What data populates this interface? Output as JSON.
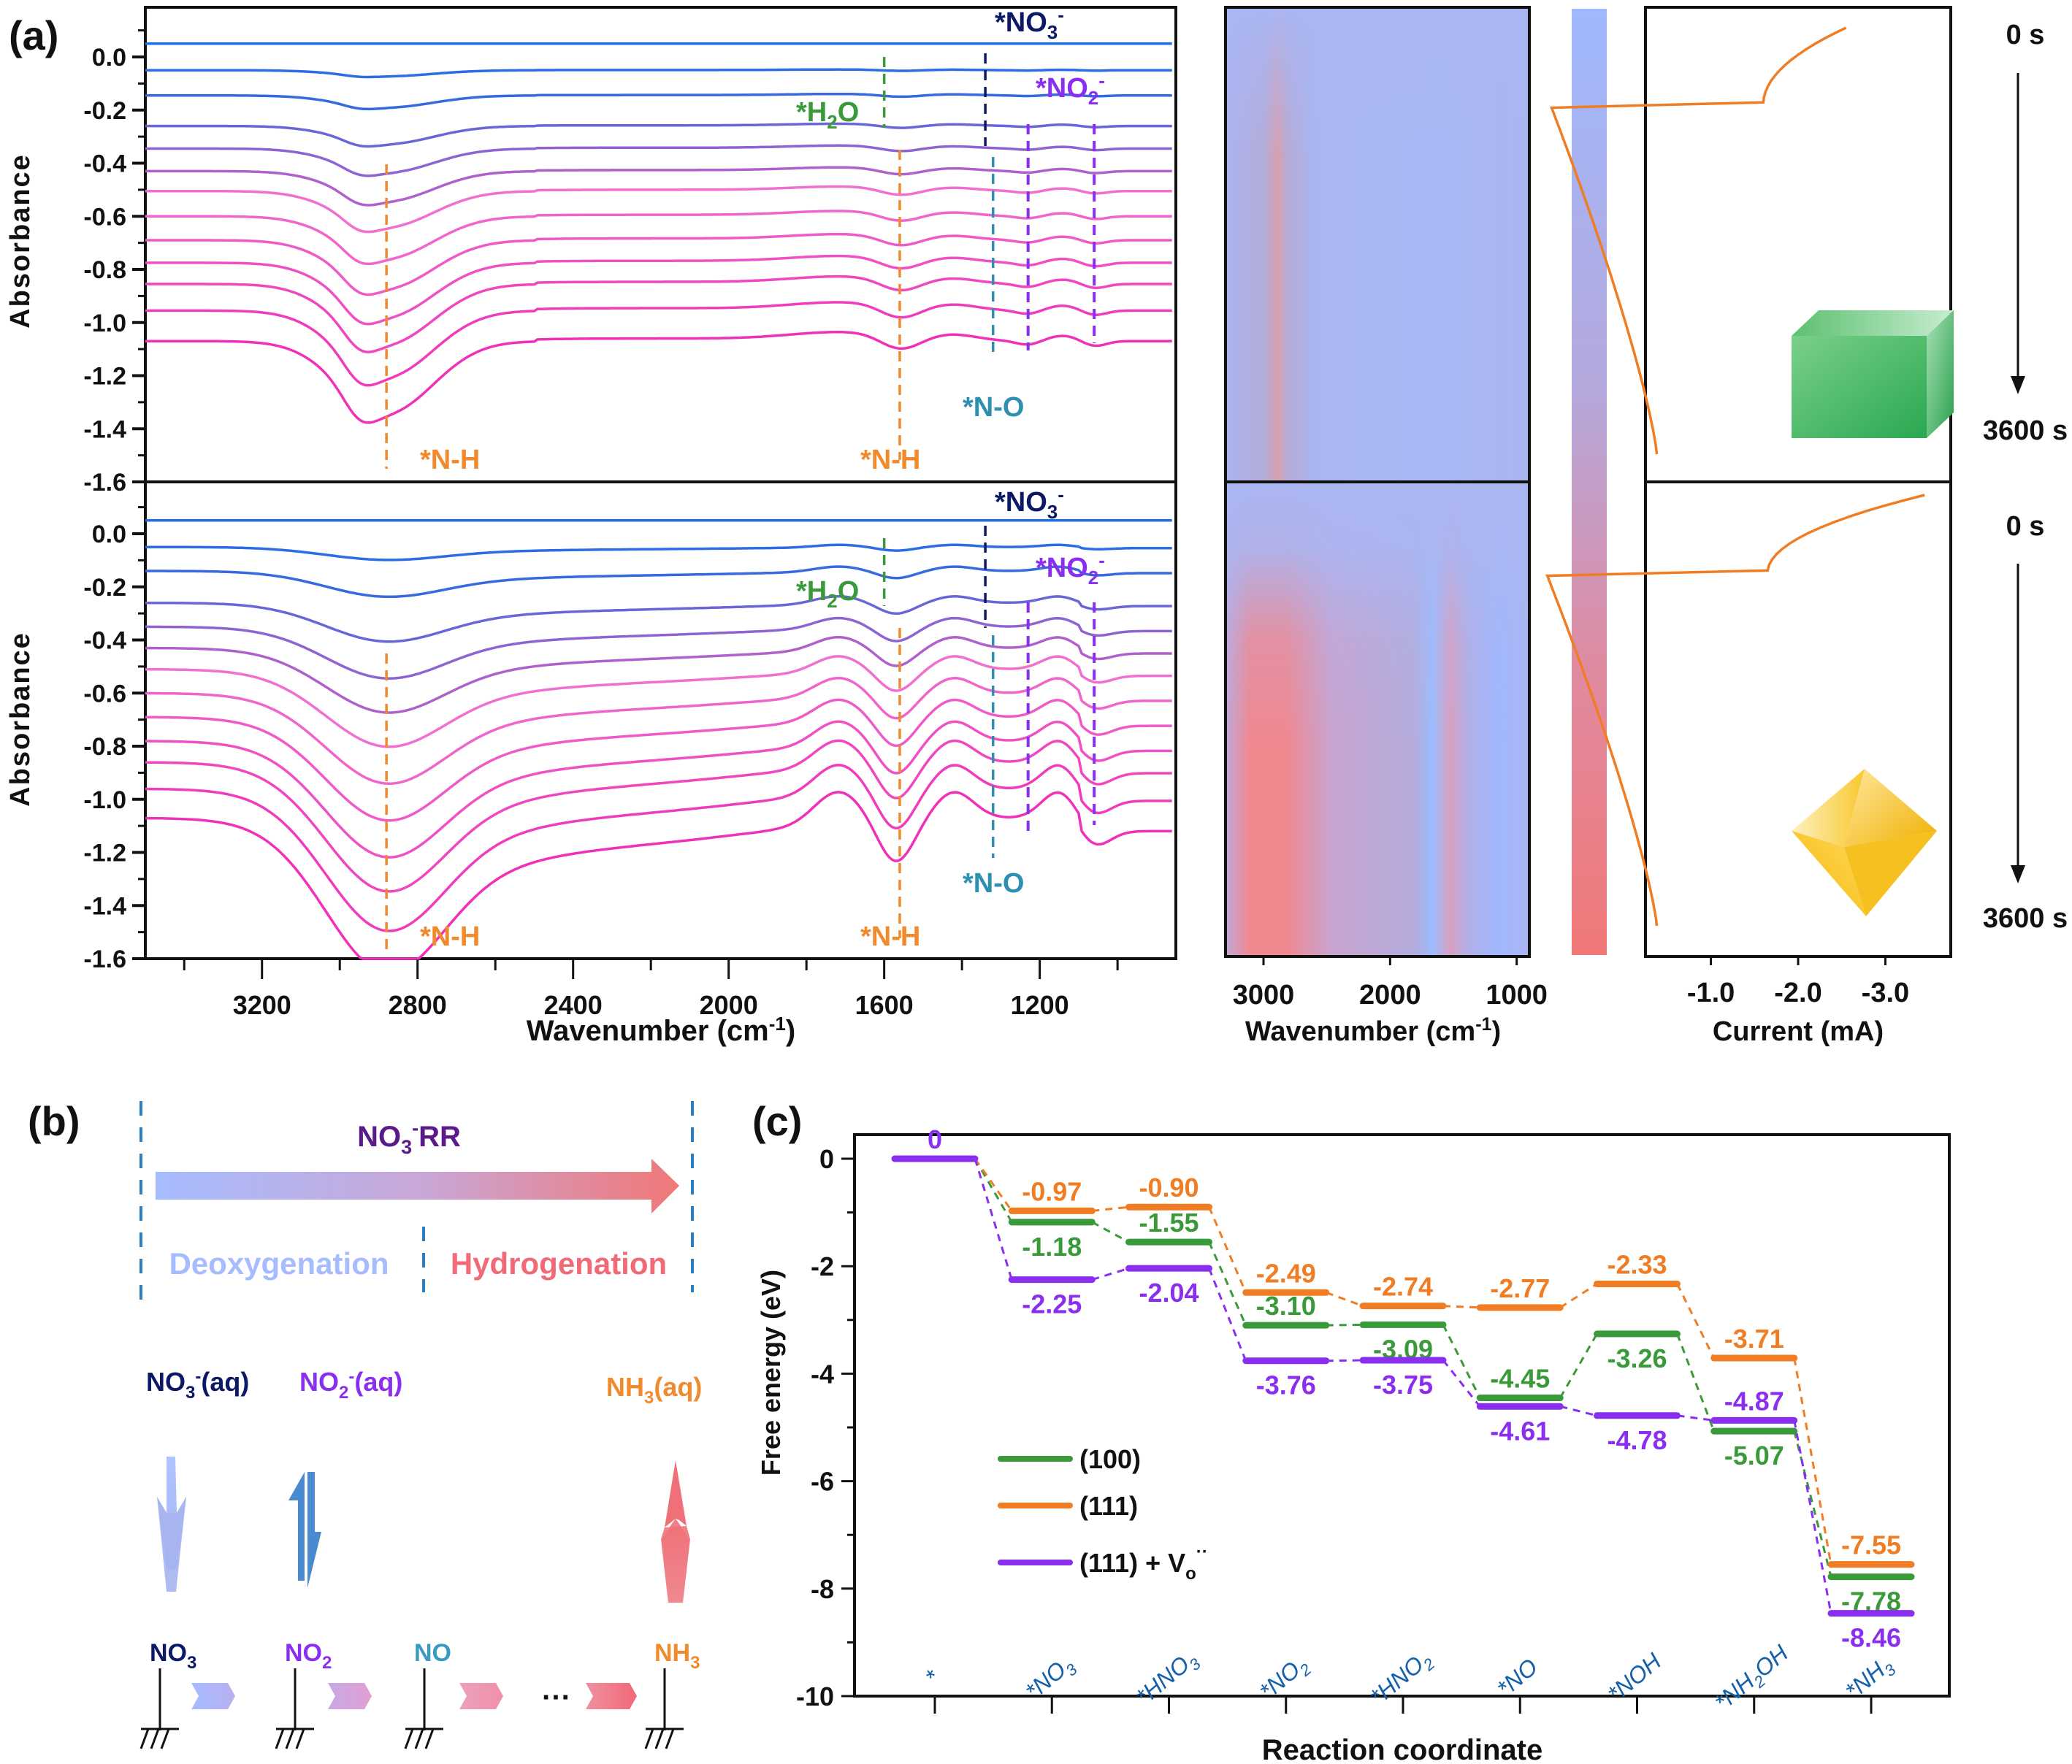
{
  "panel_labels": {
    "a": "(a)",
    "b": "(b)",
    "c": "(c)"
  },
  "chart_data": [
    {
      "id": "a-spectra-top",
      "type": "line",
      "title": "",
      "xlabel": "Wavenumber (cm-1)",
      "xlabel_main": "Wavenumber (cm",
      "xlabel_sup": "-1",
      "xlabel_close": ")",
      "ylabel": "Absorbance",
      "xlim": [
        3500,
        850
      ],
      "ylim": [
        -1.6,
        0.15
      ],
      "x_ticks": [
        3200,
        2800,
        2400,
        2000,
        1600,
        1200
      ],
      "y_ticks": [
        "0.0",
        "-0.2",
        "-0.4",
        "-0.6",
        "-0.8",
        "-1.0",
        "-1.2",
        "-1.4",
        "-1.6"
      ],
      "y_tick_values": [
        0.0,
        -0.2,
        -0.4,
        -0.6,
        -0.8,
        -1.0,
        -1.2,
        -1.4,
        -1.6
      ],
      "n_curves": 13,
      "curve_offsets": [
        0.05,
        -0.05,
        -0.145,
        -0.26,
        -0.345,
        -0.43,
        -0.505,
        -0.6,
        -0.69,
        -0.775,
        -0.855,
        -0.955,
        -1.07
      ],
      "curve_colors": [
        "#1f6fe8",
        "#2a6de6",
        "#3769e0",
        "#6a66d8",
        "#8f63d2",
        "#b060cc",
        "#f06fcf",
        "#f064cc",
        "#f05ac8",
        "#f050c4",
        "#f046c0",
        "#f03cbc",
        "#f030b8"
      ],
      "nh_dip_depth_max": 0.27,
      "annotations": [
        {
          "label": "*N-H",
          "x": 2880,
          "color": "#f08a2c"
        },
        {
          "label": "*N-H",
          "x": 1560,
          "color": "#f08a2c"
        },
        {
          "label": "*H2O",
          "x": 1600,
          "color": "#3a9a3a"
        },
        {
          "label": "*NO3-",
          "x": 1340,
          "color": "#0c1a66"
        },
        {
          "label": "*NO2-",
          "x": [
            1230,
            1060
          ],
          "color": "#8a2ef0"
        },
        {
          "label": "*N-O",
          "x": 1320,
          "color": "#2f8fb0"
        }
      ]
    },
    {
      "id": "a-spectra-bottom",
      "type": "line",
      "xlabel": "Wavenumber (cm-1)",
      "ylabel": "Absorbance",
      "xlim": [
        3500,
        850
      ],
      "ylim": [
        -1.6,
        0.15
      ],
      "x_ticks": [
        3200,
        2800,
        2400,
        2000,
        1600,
        1200
      ],
      "y_ticks": [
        "0.0",
        "-0.2",
        "-0.4",
        "-0.6",
        "-0.8",
        "-1.0",
        "-1.2",
        "-1.4",
        "-1.6"
      ],
      "y_tick_values": [
        0.0,
        -0.2,
        -0.4,
        -0.6,
        -0.8,
        -1.0,
        -1.2,
        -1.4,
        -1.6
      ],
      "n_curves": 13,
      "curve_offsets": [
        0.05,
        -0.05,
        -0.14,
        -0.26,
        -0.35,
        -0.43,
        -0.51,
        -0.6,
        -0.69,
        -0.78,
        -0.86,
        -0.96,
        -1.07
      ],
      "nh_dip_depth_max": 0.47,
      "annotations": [
        {
          "label": "*N-H",
          "x": 2880,
          "color": "#f08a2c"
        },
        {
          "label": "*N-H",
          "x": 1560,
          "color": "#f08a2c"
        },
        {
          "label": "*H2O",
          "x": 1600,
          "color": "#3a9a3a"
        },
        {
          "label": "*NO3-",
          "x": 1340,
          "color": "#0c1a66"
        },
        {
          "label": "*NO2-",
          "x": [
            1230,
            1060
          ],
          "color": "#8a2ef0"
        },
        {
          "label": "*N-O",
          "x": 1320,
          "color": "#2f8fb0"
        }
      ]
    },
    {
      "id": "a-heatmap",
      "type": "heatmap",
      "xlabel": "Wavenumber (cm-1)",
      "x_ticks": [
        3000,
        2000,
        1000
      ],
      "xlim": [
        3300,
        900
      ],
      "colormap": [
        "#a0b8ff",
        "#f07878"
      ],
      "hot_bands_top": [
        2880
      ],
      "hot_bands_bottom": [
        2880,
        1560
      ],
      "cool_bands_bottom": [
        1700,
        1150
      ]
    },
    {
      "id": "a-current",
      "type": "line",
      "xlabel": "Current (mA)",
      "x_ticks": [
        "-1.0",
        "-2.0",
        "-3.0"
      ],
      "x_tick_values": [
        -1.0,
        -2.0,
        -3.0
      ],
      "xlim": [
        -0.25,
        -3.75
      ],
      "time_start": "0 s",
      "time_end": "3600 s",
      "line_color": "#f07d24",
      "top_curve_current_end": -2.55,
      "bottom_curve_current_end": -3.45
    },
    {
      "id": "c-free-energy",
      "type": "line",
      "title": "",
      "xlabel": "Reaction coordinate",
      "ylabel": "Free energy (eV)",
      "ylim": [
        -10,
        1.0
      ],
      "y_ticks": [
        "0",
        "-2",
        "-4",
        "-6",
        "-8",
        "-10"
      ],
      "y_tick_values": [
        0,
        -2,
        -4,
        -6,
        -8,
        -10
      ],
      "categories": [
        "*",
        "*NO3",
        "*HNO3",
        "*NO2",
        "*HNO2",
        "*NO",
        "*NOH",
        "*NH2OH",
        "*NH3"
      ],
      "series": [
        {
          "name": "(100)",
          "color": "#3a9a3a",
          "values": [
            0,
            -1.18,
            -1.55,
            -3.1,
            -3.09,
            -4.45,
            -3.26,
            -5.07,
            -7.78
          ]
        },
        {
          "name": "(111)",
          "color": "#f07d24",
          "values": [
            0,
            -0.97,
            -0.9,
            -2.49,
            -2.74,
            -2.77,
            -2.33,
            -3.71,
            -7.55
          ]
        },
        {
          "name": "(111) + Vo''",
          "color": "#8a2ef0",
          "values": [
            0,
            -2.25,
            -2.04,
            -3.76,
            -3.75,
            -4.61,
            -4.78,
            -4.87,
            -8.46
          ]
        }
      ],
      "value_labels": {
        "(100)": [
          "",
          "-1.18",
          "-1.55",
          "-3.10",
          "-3.09",
          "-4.45",
          "-3.26",
          "-5.07",
          "-7.78"
        ],
        "(111)": [
          "",
          "-0.97",
          "-0.90",
          "-2.49",
          "-2.74",
          "-2.77",
          "-2.33",
          "-3.71",
          "-7.55"
        ],
        "(111) + Vo''": [
          "0",
          "-2.25",
          "-2.04",
          "-3.76",
          "-3.75",
          "-4.61",
          "-4.78",
          "-4.87",
          "-8.46"
        ]
      },
      "legend": [
        "(100)",
        "(111)",
        "(111) + Vo''"
      ],
      "legend_position": "lower-left",
      "category_label_color": "#1560a8"
    }
  ],
  "panel_a": {
    "ylabel": "Absorbance",
    "xlabel_main": "Wavenumber (cm",
    "xlabel_sup": "-1",
    "xlabel_close": ")",
    "label_nh": "*N-H",
    "label_h2o_pre": "*H",
    "label_h2o_sub": "2",
    "label_h2o_post": "O",
    "label_no3_pre": "*NO",
    "label_no3_sub": "3",
    "label_no3_sup": "-",
    "label_no2_pre": "*NO",
    "label_no2_sub": "2",
    "label_no2_sup": "-",
    "label_no": "*N-O",
    "current_xlabel": "Current (mA)",
    "time_start": "0 s",
    "time_end": "3600 s",
    "heat_ticks": [
      "3000",
      "2000",
      "1000"
    ]
  },
  "panel_b": {
    "title_pre": "NO",
    "title_sub": "3",
    "title_sup": "-",
    "title_post": "RR",
    "deoxygenation": "Deoxygenation",
    "hydrogenation": "Hydrogenation",
    "species_aq": [
      {
        "pre": "NO",
        "sub": "3",
        "sup": "-",
        "post": "(aq)",
        "color": "#0c1a66"
      },
      {
        "pre": "NO",
        "sub": "2",
        "sup": "-",
        "post": "(aq)",
        "color": "#8a2ef0"
      },
      {
        "pre": "NH",
        "sub": "3",
        "sup": "",
        "post": "(aq)",
        "color": "#f08a2c"
      }
    ],
    "adsorbed": [
      {
        "pre": "NO",
        "sub": "3",
        "color": "#0c1a66"
      },
      {
        "pre": "NO",
        "sub": "2",
        "color": "#8a2ef0"
      },
      {
        "pre": "NO",
        "sub": "",
        "color": "#3a9ac0"
      },
      {
        "pre": "NH",
        "sub": "3",
        "color": "#f08a2c"
      }
    ],
    "ellipsis": "···",
    "colors": {
      "blue": "#a6bcff",
      "red": "#f07878",
      "mid_blue": "#4a8ad0",
      "purple_title": "#5a1a8a",
      "deoxy": "#a6bcff",
      "hydro": "#f06a78"
    }
  },
  "panel_c": {
    "ylabel": "Free energy (eV)",
    "xlabel": "Reaction coordinate",
    "categories": [
      {
        "pre": "*",
        "sub": "",
        "post": ""
      },
      {
        "pre": "*NO",
        "sub": "3",
        "post": ""
      },
      {
        "pre": "*HNO",
        "sub": "3",
        "post": ""
      },
      {
        "pre": "*NO",
        "sub": "2",
        "post": ""
      },
      {
        "pre": "*HNO",
        "sub": "2",
        "post": ""
      },
      {
        "pre": "*NO",
        "sub": "",
        "post": ""
      },
      {
        "pre": "*NOH",
        "sub": "",
        "post": ""
      },
      {
        "pre": "*NH",
        "sub": "2",
        "post": "OH"
      },
      {
        "pre": "*NH",
        "sub": "3",
        "post": ""
      }
    ],
    "legend": [
      {
        "label": "(100)",
        "color": "#3a9a3a"
      },
      {
        "label": "(111)",
        "color": "#f07d24"
      },
      {
        "label_pre": "(111) + V",
        "label_sub": "o",
        "label_sup": "··",
        "color": "#8a2ef0"
      }
    ]
  }
}
